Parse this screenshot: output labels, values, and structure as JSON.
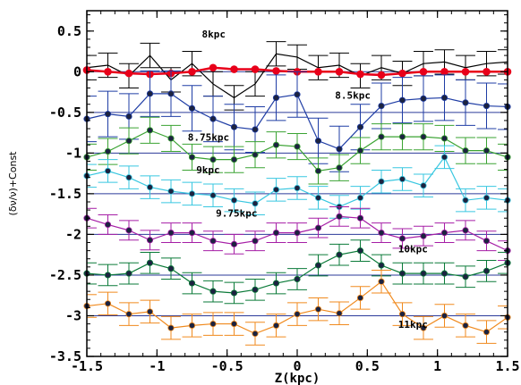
{
  "chart_data": {
    "type": "line",
    "xlabel": "Z(kpc)",
    "ylabel": "(δν/ν)+Const",
    "xlim": [
      -1.5,
      1.5
    ],
    "ylim": [
      -3.5,
      0.75
    ],
    "x_ticks": [
      "-1.5",
      "-1",
      "-0.5",
      "0",
      "0.5",
      "1",
      "1.5"
    ],
    "y_ticks": [
      "0.5",
      "0",
      "-0.5",
      "-1",
      "-1.5",
      "-2",
      "-2.5",
      "-3",
      "-3.5"
    ],
    "x_tick_values": [
      -1.5,
      -1,
      -0.5,
      0,
      0.5,
      1,
      1.5
    ],
    "y_tick_values": [
      0.5,
      0,
      -0.5,
      -1,
      -1.5,
      -2,
      -2.5,
      -3,
      -3.5
    ],
    "x": [
      -1.5,
      -1.35,
      -1.2,
      -1.05,
      -0.9,
      -0.75,
      -0.6,
      -0.45,
      -0.3,
      -0.15,
      0,
      0.15,
      0.3,
      0.45,
      0.6,
      0.75,
      0.9,
      1.05,
      1.2,
      1.35,
      1.5
    ],
    "series": [
      {
        "name": "8kpc",
        "color": "#000000",
        "marker": false,
        "baseline": 0,
        "errorbar": 0.15,
        "values": [
          0.05,
          0.08,
          -0.05,
          0.2,
          -0.1,
          0.1,
          -0.15,
          -0.32,
          -0.15,
          0.22,
          0.18,
          0.05,
          0.08,
          -0.05,
          0.05,
          -0.02,
          0.1,
          0.12,
          0.05,
          0.1,
          0.12
        ]
      },
      {
        "name": "red",
        "color": "#e8001a",
        "marker": true,
        "baseline": null,
        "errorbar": 0,
        "values": [
          0.02,
          0.0,
          -0.02,
          -0.03,
          -0.02,
          0.0,
          0.05,
          0.03,
          0.03,
          0.01,
          0.0,
          0.0,
          0.0,
          -0.03,
          -0.04,
          -0.02,
          0.0,
          0.0,
          0.0,
          0.0,
          0.0
        ]
      },
      {
        "name": "8.5kpc",
        "color": "#1f3da5",
        "marker": true,
        "baseline": -0.5,
        "errorbar": 0.28,
        "values": [
          -0.58,
          -0.52,
          -0.55,
          -0.27,
          -0.27,
          -0.45,
          -0.58,
          -0.68,
          -0.71,
          -0.32,
          -0.28,
          -0.85,
          -0.95,
          -0.68,
          -0.42,
          -0.35,
          -0.33,
          -0.32,
          -0.38,
          -0.42,
          -0.43
        ]
      },
      {
        "name": "8.75kpc",
        "color": "#3aa332",
        "marker": true,
        "baseline": -1.0,
        "errorbar": 0.16,
        "values": [
          -1.05,
          -0.98,
          -0.85,
          -0.72,
          -0.82,
          -1.05,
          -1.08,
          -1.08,
          -1.02,
          -0.9,
          -0.92,
          -1.22,
          -1.18,
          -0.97,
          -0.8,
          -0.8,
          -0.8,
          -0.82,
          -0.97,
          -0.97,
          -1.05
        ]
      },
      {
        "name": "9kpc",
        "color": "#39c7e0",
        "marker": true,
        "baseline": -1.5,
        "errorbar": 0.14,
        "values": [
          -1.28,
          -1.22,
          -1.3,
          -1.42,
          -1.47,
          -1.5,
          -1.52,
          -1.58,
          -1.62,
          -1.45,
          -1.43,
          -1.55,
          -1.66,
          -1.55,
          -1.35,
          -1.32,
          -1.4,
          -1.05,
          -1.58,
          -1.55,
          -1.58
        ]
      },
      {
        "name": "9.75kpc",
        "color": "#a61ea6",
        "marker": true,
        "baseline": -2.0,
        "errorbar": 0.12,
        "values": [
          -1.8,
          -1.88,
          -1.95,
          -2.07,
          -1.98,
          -1.98,
          -2.08,
          -2.12,
          -2.08,
          -1.98,
          -1.98,
          -1.92,
          -1.78,
          -1.8,
          -1.98,
          -2.05,
          -2.02,
          -1.98,
          -1.95,
          -2.08,
          -2.2
        ]
      },
      {
        "name": "10kpc",
        "color": "#0a7a38",
        "marker": true,
        "baseline": -2.5,
        "errorbar": 0.13,
        "values": [
          -2.48,
          -2.5,
          -2.48,
          -2.35,
          -2.42,
          -2.6,
          -2.7,
          -2.72,
          -2.68,
          -2.6,
          -2.55,
          -2.38,
          -2.25,
          -2.2,
          -2.38,
          -2.48,
          -2.48,
          -2.48,
          -2.52,
          -2.45,
          -2.35
        ]
      },
      {
        "name": "11kpc",
        "color": "#f08a1e",
        "marker": true,
        "baseline": -3.0,
        "errorbar": 0.14,
        "values": [
          -2.88,
          -2.85,
          -2.98,
          -2.95,
          -3.15,
          -3.12,
          -3.1,
          -3.1,
          -3.22,
          -3.12,
          -2.98,
          -2.92,
          -2.97,
          -2.78,
          -2.58,
          -2.98,
          -3.15,
          -3.0,
          -3.12,
          -3.2,
          -3.02
        ]
      }
    ],
    "annotations": [
      {
        "text": "8kpc",
        "x": -0.68,
        "y": 0.42
      },
      {
        "text": "8.5kpc",
        "x": 0.27,
        "y": -0.33
      },
      {
        "text": "8.75kpc",
        "x": -0.78,
        "y": -0.85
      },
      {
        "text": "9kpc",
        "x": -0.72,
        "y": -1.25
      },
      {
        "text": "9.75kpc",
        "x": -0.58,
        "y": -1.78
      },
      {
        "text": "10kpc",
        "x": 0.72,
        "y": -2.22
      },
      {
        "text": "11kpc",
        "x": 0.72,
        "y": -3.15
      }
    ],
    "grid": false,
    "legend": "none"
  }
}
